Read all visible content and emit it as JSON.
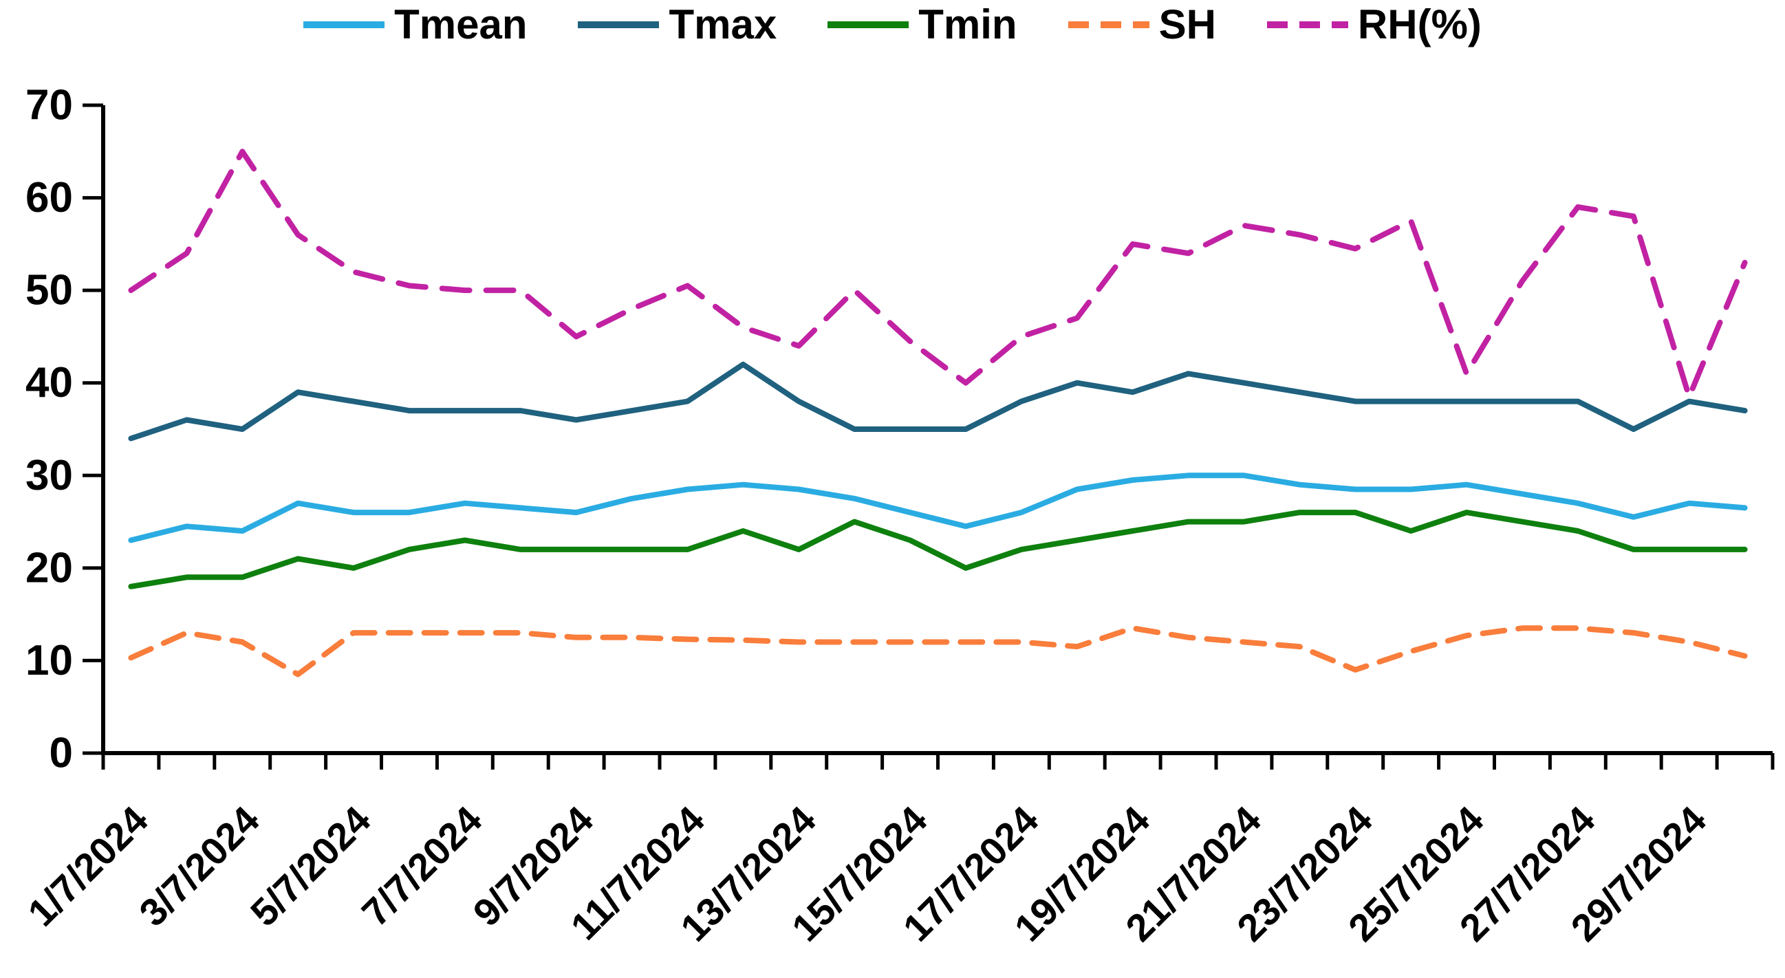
{
  "chart_data": {
    "type": "line",
    "title": "",
    "x": [
      "1/7/2024",
      "2/7/2024",
      "3/7/2024",
      "4/7/2024",
      "5/7/2024",
      "6/7/2024",
      "7/7/2024",
      "8/7/2024",
      "9/7/2024",
      "10/7/2024",
      "11/7/2024",
      "12/7/2024",
      "13/7/2024",
      "14/7/2024",
      "15/7/2024",
      "16/7/2024",
      "17/7/2024",
      "18/7/2024",
      "19/7/2024",
      "20/7/2024",
      "21/7/2024",
      "22/7/2024",
      "23/7/2024",
      "24/7/2024",
      "25/7/2024",
      "26/7/2024",
      "27/7/2024",
      "28/7/2024",
      "29/7/2024",
      "30/7/2024"
    ],
    "x_label_step": 2,
    "x_tick_labels_shown": [
      "1/7/2024",
      "3/7/2024",
      "5/7/2024",
      "7/7/2024",
      "9/7/2024",
      "11/7/2024",
      "13/7/2024",
      "15/7/2024",
      "17/7/2024",
      "19/7/2024",
      "21/7/2024",
      "23/7/2024",
      "25/7/2024",
      "27/7/2024",
      "29/7/2024"
    ],
    "ylim": [
      0,
      70
    ],
    "yticks": [
      0,
      10,
      20,
      30,
      40,
      50,
      60,
      70
    ],
    "grid": false,
    "legend_position": "top",
    "series": [
      {
        "name": "Tmean",
        "color": "#2AACE2",
        "dash": false,
        "values": [
          23,
          24.5,
          24,
          27,
          26,
          26,
          27,
          26.5,
          26,
          27.5,
          28.5,
          29,
          28.5,
          27.5,
          26,
          24.5,
          26,
          28.5,
          29.5,
          30,
          30,
          29,
          28.5,
          28.5,
          29,
          28,
          27,
          25.5,
          27,
          26.5
        ]
      },
      {
        "name": "Tmax",
        "color": "#1F617F",
        "dash": false,
        "values": [
          34,
          36,
          35,
          39,
          38,
          37,
          37,
          37,
          36,
          37,
          38,
          42,
          38,
          35,
          35,
          35,
          38,
          40,
          39,
          41,
          40,
          39,
          38,
          38,
          38,
          38,
          38,
          35,
          38,
          37
        ]
      },
      {
        "name": "Tmin",
        "color": "#0E800E",
        "dash": false,
        "values": [
          18,
          19,
          19,
          21,
          20,
          22,
          23,
          22,
          22,
          22,
          22,
          24,
          22,
          25,
          23,
          20,
          22,
          23,
          24,
          25,
          25,
          26,
          26,
          24,
          26,
          25,
          24,
          22,
          22,
          22
        ]
      },
      {
        "name": "SH",
        "color": "#F97D3B",
        "dash": true,
        "values": [
          10.3,
          13,
          12,
          8.5,
          13,
          13,
          13,
          13,
          12.5,
          12.5,
          12.3,
          12.2,
          12,
          12,
          12,
          12,
          12,
          11.5,
          13.5,
          12.5,
          12,
          11.5,
          9,
          11,
          12.7,
          13.5,
          13.5,
          13,
          12,
          10.5
        ]
      },
      {
        "name": "RH(%)",
        "color": "#C122A3",
        "dash": true,
        "values": [
          50,
          54,
          65,
          56,
          52,
          50.5,
          50,
          50,
          45,
          48,
          50.5,
          46,
          44,
          50,
          44.5,
          40,
          45,
          47,
          55,
          54,
          57,
          56,
          54.5,
          57.5,
          41,
          51,
          59,
          58,
          38.5,
          53
        ]
      }
    ],
    "axis_color": "#000000"
  }
}
